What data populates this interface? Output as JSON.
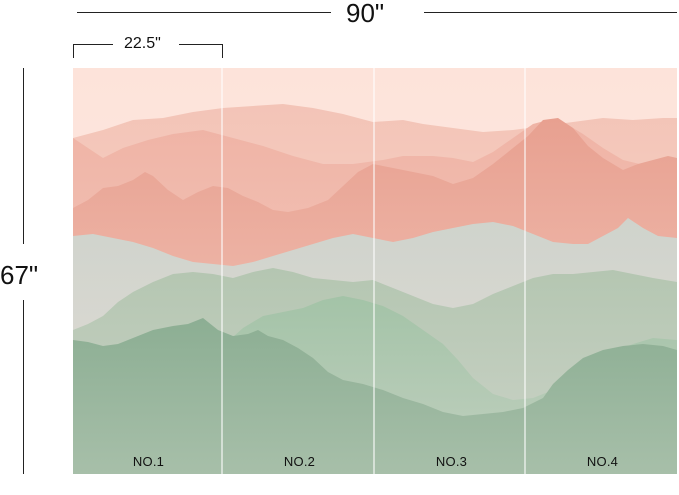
{
  "dimensions": {
    "width_label": "90\"",
    "panel_width_label": "22.5\"",
    "height_label": "67\""
  },
  "panels": [
    {
      "label": "NO.1"
    },
    {
      "label": "NO.2"
    },
    {
      "label": "NO.3"
    },
    {
      "label": "NO.4"
    }
  ],
  "colors": {
    "sky": "#fde7df",
    "pink_light": "#f4c3b6",
    "pink": "#eeab9e",
    "pink_deep": "#e49585",
    "grey": "#d4d6cf",
    "sage": "#b9c8b5",
    "green": "#9dbd9f",
    "green_deep": "#86a98e"
  }
}
